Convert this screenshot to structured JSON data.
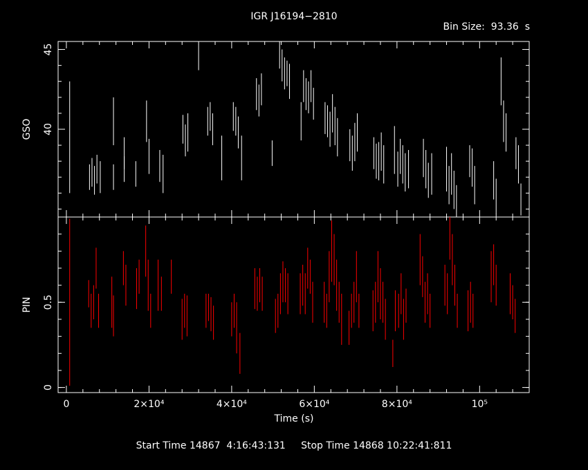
{
  "header": {
    "title": "IGR J16194−2810",
    "bin_size": "Bin Size:  93.36  s"
  },
  "footer": {
    "times": "Start Time 14867  4:16:43:131     Stop Time 14868 10:22:41:811"
  },
  "chart_data": [
    {
      "type": "scatter",
      "panel": "top",
      "ylabel": "GSO",
      "xlim": [
        -2000,
        112000
      ],
      "ylim": [
        34.5,
        45.5
      ],
      "yticks": [
        "40",
        "45"
      ],
      "ytick_values": [
        40,
        45
      ],
      "color": "#ffffff",
      "error_bars": true,
      "points": [
        [
          800,
          39.5,
          3.5
        ],
        [
          5600,
          37,
          0.8
        ],
        [
          6200,
          37.3,
          0.9
        ],
        [
          6800,
          36.8,
          0.9
        ],
        [
          7400,
          37.5,
          0.9
        ],
        [
          8200,
          37,
          1
        ],
        [
          11400,
          37,
          0.8
        ],
        [
          11400,
          40.5,
          1.5
        ],
        [
          14000,
          37.5,
          0.8
        ],
        [
          14000,
          38.5,
          1
        ],
        [
          16800,
          37.2,
          0.8
        ],
        [
          19400,
          40.5,
          1.3
        ],
        [
          20000,
          38.3,
          1.1
        ],
        [
          22600,
          37.7,
          1
        ],
        [
          23400,
          37.2,
          1.2
        ],
        [
          28200,
          40,
          0.9
        ],
        [
          28800,
          39.3,
          1
        ],
        [
          29400,
          39.8,
          1.2
        ],
        [
          32000,
          44.5,
          0.8
        ],
        [
          34200,
          40.5,
          0.9
        ],
        [
          34800,
          40.8,
          0.9
        ],
        [
          35400,
          40,
          1
        ],
        [
          37600,
          38.2,
          1.4
        ],
        [
          40400,
          40.8,
          0.9
        ],
        [
          41000,
          40.5,
          0.9
        ],
        [
          41600,
          39.8,
          1
        ],
        [
          42400,
          38.2,
          1.4
        ],
        [
          46000,
          42.2,
          1
        ],
        [
          46600,
          41.8,
          1
        ],
        [
          47200,
          42.5,
          1
        ],
        [
          49800,
          38.5,
          0.8
        ],
        [
          51600,
          44.8,
          1
        ],
        [
          52200,
          44,
          1
        ],
        [
          52800,
          43.5,
          1
        ],
        [
          53400,
          43.5,
          0.8
        ],
        [
          54000,
          43,
          1.1
        ],
        [
          56800,
          40.5,
          1.2
        ],
        [
          57400,
          42.7,
          1
        ],
        [
          58000,
          42.2,
          1
        ],
        [
          58600,
          42,
          1
        ],
        [
          59200,
          42.7,
          1
        ],
        [
          59800,
          41.6,
          1
        ],
        [
          62600,
          40.7,
          1
        ],
        [
          63200,
          40.5,
          1
        ],
        [
          63800,
          40,
          1.1
        ],
        [
          64400,
          41,
          1.2
        ],
        [
          65000,
          40.2,
          1.2
        ],
        [
          65600,
          39.5,
          1.2
        ],
        [
          68600,
          39,
          1
        ],
        [
          69200,
          38.5,
          1.1
        ],
        [
          69800,
          39.2,
          1.2
        ],
        [
          70400,
          39.8,
          1.2
        ],
        [
          74400,
          38.5,
          1
        ],
        [
          75000,
          38,
          1.1
        ],
        [
          75600,
          38,
          1.2
        ],
        [
          76200,
          38.6,
          1.2
        ],
        [
          76800,
          37.8,
          1.2
        ],
        [
          79400,
          38.7,
          1.5
        ],
        [
          80200,
          37.5,
          1.1
        ],
        [
          80800,
          38.3,
          1.1
        ],
        [
          81400,
          37.8,
          1.2
        ],
        [
          82000,
          37.3,
          1.2
        ],
        [
          82800,
          37.5,
          1.2
        ],
        [
          86400,
          38.2,
          1.2
        ],
        [
          87000,
          37.5,
          1.2
        ],
        [
          87600,
          36.8,
          1.1
        ],
        [
          88400,
          37.2,
          1.3
        ],
        [
          92000,
          37.5,
          1.4
        ],
        [
          92600,
          36.5,
          1.2
        ],
        [
          93200,
          37.2,
          1.3
        ],
        [
          93800,
          36.2,
          1.2
        ],
        [
          94400,
          35.5,
          1
        ],
        [
          97600,
          38,
          1
        ],
        [
          98200,
          37.6,
          1.2
        ],
        [
          98800,
          36.5,
          1.2
        ],
        [
          103400,
          36.8,
          1.2
        ],
        [
          104000,
          35.8,
          1.1
        ],
        [
          105200,
          43,
          1.5
        ],
        [
          105800,
          40.5,
          1.3
        ],
        [
          106400,
          39.8,
          1.2
        ],
        [
          108800,
          38.5,
          1
        ],
        [
          109400,
          37.8,
          1.2
        ],
        [
          110000,
          35.6,
          1
        ]
      ]
    },
    {
      "type": "scatter",
      "panel": "bottom",
      "ylabel": "PIN",
      "xlabel": "Time (s)",
      "xlim": [
        -2000,
        112000
      ],
      "ylim": [
        -0.03,
        1.0
      ],
      "yticks": [
        "0",
        "0.5"
      ],
      "ytick_values": [
        0,
        0.5
      ],
      "xticks": [
        "0",
        "2×10⁴",
        "4×10⁴",
        "6×10⁴",
        "8×10⁴",
        "10⁵"
      ],
      "xtick_values": [
        0,
        20000,
        40000,
        60000,
        80000,
        100000
      ],
      "color": "#ff0000",
      "error_bars": true,
      "points": [
        [
          800,
          0.5,
          0.49
        ],
        [
          5400,
          0.55,
          0.08
        ],
        [
          6000,
          0.45,
          0.1
        ],
        [
          6600,
          0.5,
          0.1
        ],
        [
          7200,
          0.7,
          0.12
        ],
        [
          7800,
          0.45,
          0.1
        ],
        [
          11000,
          0.5,
          0.15
        ],
        [
          11400,
          0.42,
          0.12
        ],
        [
          13800,
          0.7,
          0.1
        ],
        [
          14400,
          0.6,
          0.12
        ],
        [
          17000,
          0.58,
          0.12
        ],
        [
          17600,
          0.65,
          0.1
        ],
        [
          19200,
          0.8,
          0.15
        ],
        [
          19800,
          0.6,
          0.15
        ],
        [
          20400,
          0.45,
          0.1
        ],
        [
          22200,
          0.6,
          0.15
        ],
        [
          23000,
          0.55,
          0.1
        ],
        [
          25400,
          0.65,
          0.1
        ],
        [
          28000,
          0.4,
          0.12
        ],
        [
          28600,
          0.45,
          0.1
        ],
        [
          29200,
          0.42,
          0.12
        ],
        [
          33800,
          0.45,
          0.1
        ],
        [
          34400,
          0.47,
          0.08
        ],
        [
          35000,
          0.43,
          0.1
        ],
        [
          35600,
          0.38,
          0.1
        ],
        [
          40000,
          0.4,
          0.1
        ],
        [
          40600,
          0.45,
          0.1
        ],
        [
          41200,
          0.35,
          0.15
        ],
        [
          42000,
          0.2,
          0.12
        ],
        [
          45600,
          0.58,
          0.12
        ],
        [
          46200,
          0.55,
          0.1
        ],
        [
          46800,
          0.6,
          0.1
        ],
        [
          47400,
          0.55,
          0.1
        ],
        [
          50600,
          0.42,
          0.1
        ],
        [
          51200,
          0.45,
          0.1
        ],
        [
          51800,
          0.55,
          0.12
        ],
        [
          52400,
          0.62,
          0.12
        ],
        [
          53000,
          0.6,
          0.1
        ],
        [
          53600,
          0.55,
          0.12
        ],
        [
          56600,
          0.55,
          0.12
        ],
        [
          57200,
          0.6,
          0.12
        ],
        [
          57800,
          0.55,
          0.12
        ],
        [
          58400,
          0.7,
          0.12
        ],
        [
          59000,
          0.65,
          0.1
        ],
        [
          59600,
          0.5,
          0.12
        ],
        [
          62400,
          0.5,
          0.12
        ],
        [
          63000,
          0.45,
          0.1
        ],
        [
          63600,
          0.65,
          0.15
        ],
        [
          64200,
          0.8,
          0.18
        ],
        [
          64800,
          0.75,
          0.15
        ],
        [
          65400,
          0.6,
          0.15
        ],
        [
          66000,
          0.5,
          0.12
        ],
        [
          66600,
          0.4,
          0.15
        ],
        [
          68400,
          0.35,
          0.1
        ],
        [
          69000,
          0.45,
          0.1
        ],
        [
          69600,
          0.5,
          0.12
        ],
        [
          70200,
          0.65,
          0.15
        ],
        [
          70800,
          0.45,
          0.1
        ],
        [
          74200,
          0.45,
          0.12
        ],
        [
          74800,
          0.5,
          0.12
        ],
        [
          75400,
          0.65,
          0.15
        ],
        [
          76000,
          0.55,
          0.15
        ],
        [
          76600,
          0.5,
          0.12
        ],
        [
          77200,
          0.4,
          0.12
        ],
        [
          79000,
          0.2,
          0.08
        ],
        [
          79600,
          0.45,
          0.12
        ],
        [
          80400,
          0.45,
          0.1
        ],
        [
          81000,
          0.55,
          0.12
        ],
        [
          81600,
          0.4,
          0.12
        ],
        [
          82200,
          0.48,
          0.1
        ],
        [
          85600,
          0.75,
          0.15
        ],
        [
          86200,
          0.65,
          0.12
        ],
        [
          86800,
          0.5,
          0.12
        ],
        [
          87400,
          0.55,
          0.12
        ],
        [
          88000,
          0.45,
          0.1
        ],
        [
          91600,
          0.6,
          0.12
        ],
        [
          92200,
          0.55,
          0.12
        ],
        [
          92800,
          0.9,
          0.15
        ],
        [
          93400,
          0.75,
          0.15
        ],
        [
          94000,
          0.6,
          0.12
        ],
        [
          94600,
          0.45,
          0.1
        ],
        [
          97200,
          0.45,
          0.12
        ],
        [
          97800,
          0.5,
          0.12
        ],
        [
          98400,
          0.45,
          0.1
        ],
        [
          102800,
          0.65,
          0.15
        ],
        [
          103400,
          0.72,
          0.12
        ],
        [
          104000,
          0.6,
          0.12
        ],
        [
          107400,
          0.55,
          0.12
        ],
        [
          108000,
          0.5,
          0.1
        ],
        [
          108600,
          0.42,
          0.1
        ]
      ]
    }
  ]
}
